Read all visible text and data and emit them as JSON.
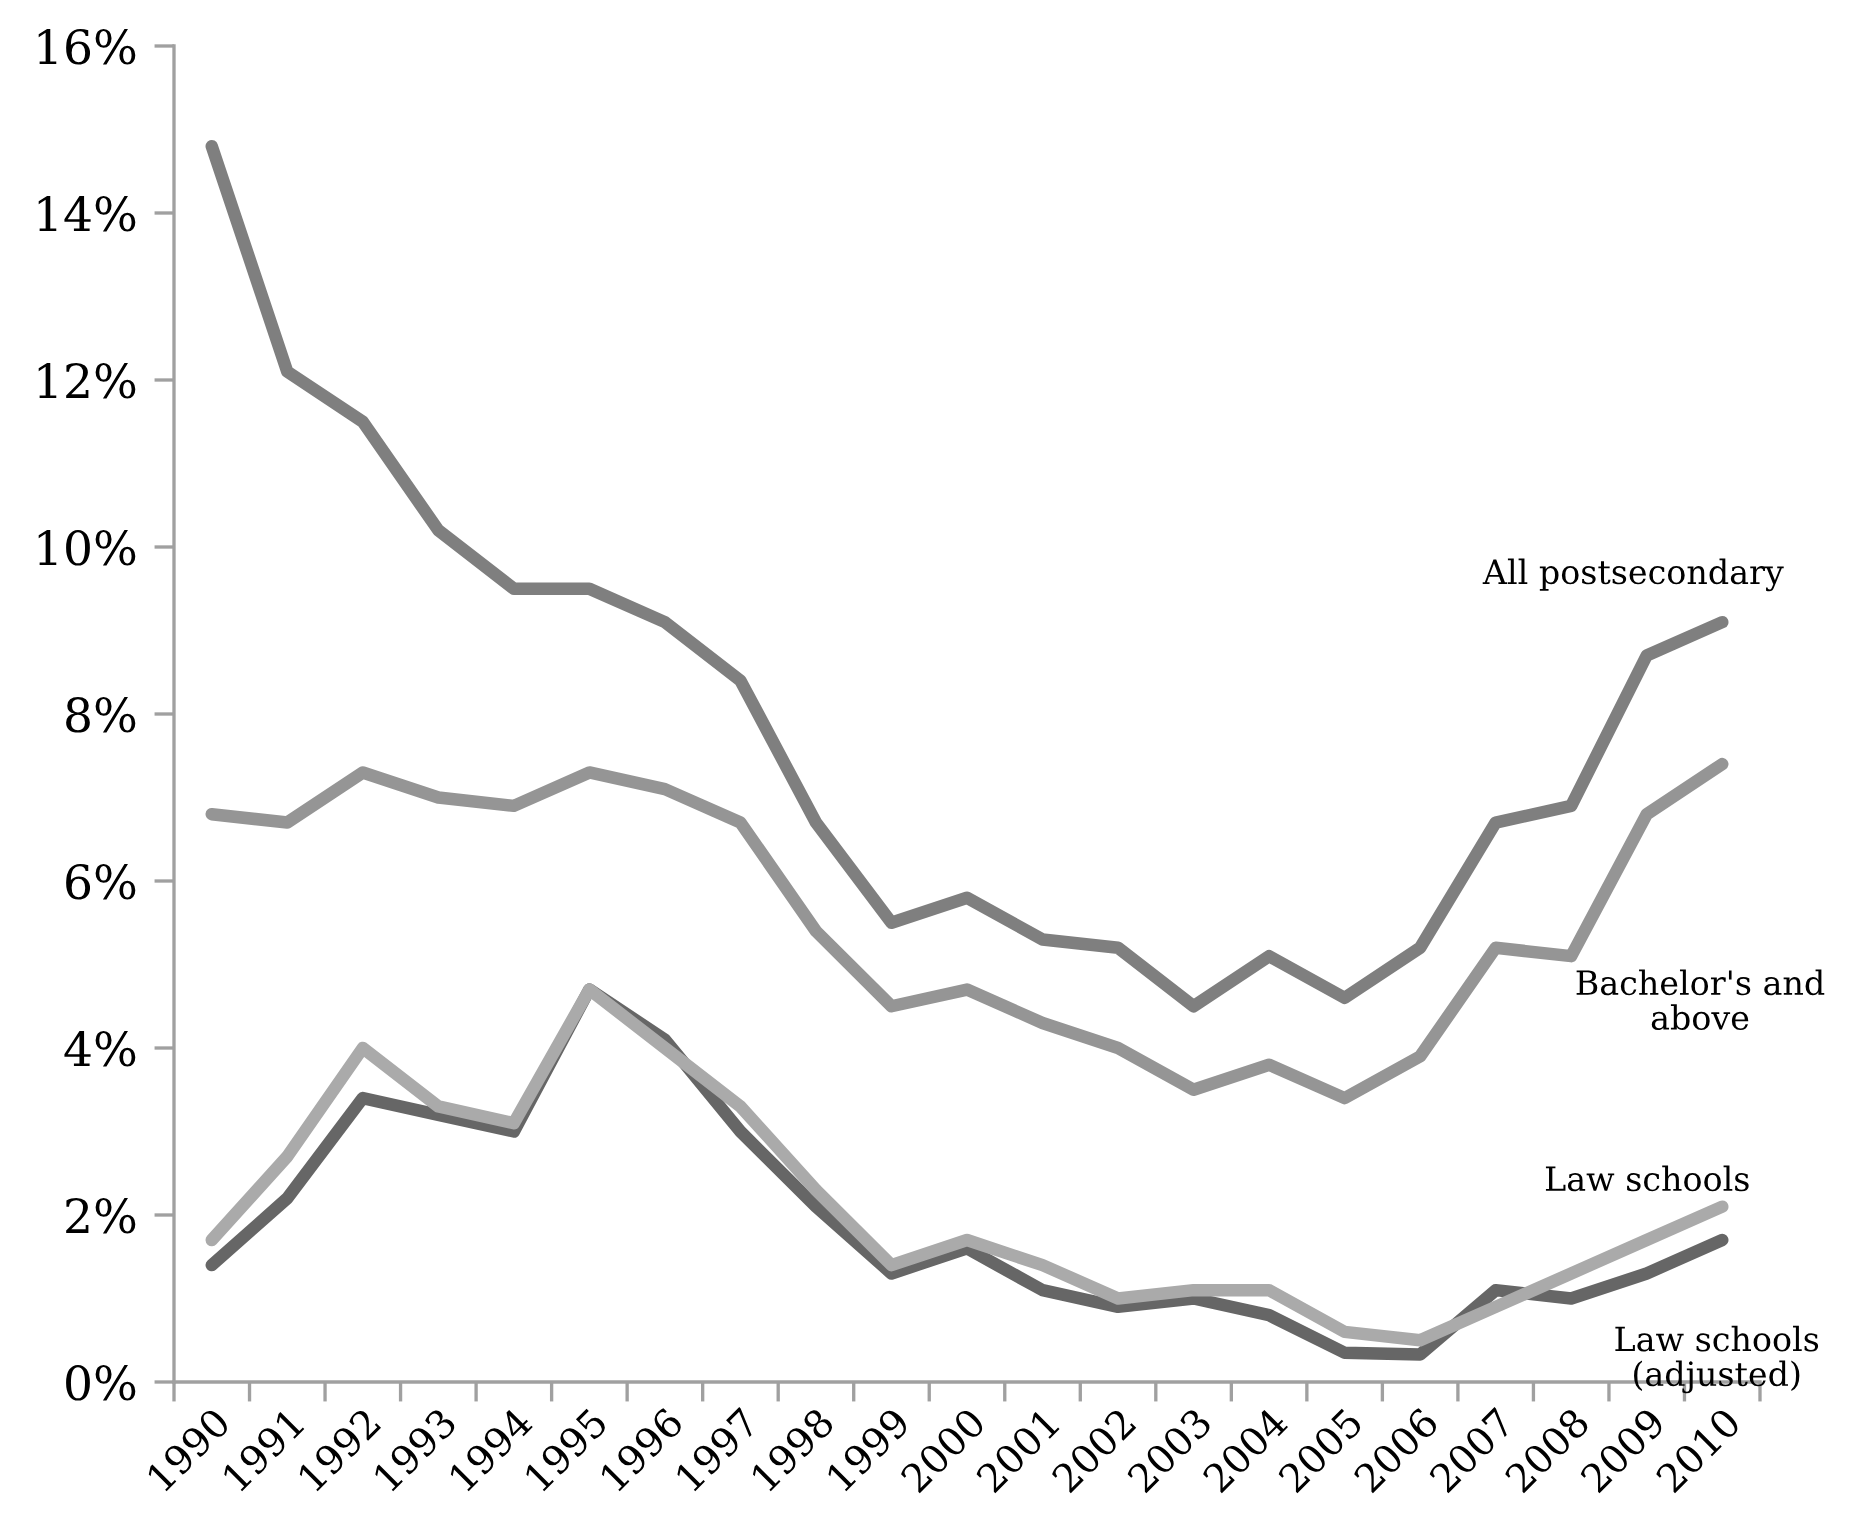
{
  "chart_data": {
    "type": "line",
    "categories": [
      "1990",
      "1991",
      "1992",
      "1993",
      "1994",
      "1995",
      "1996",
      "1997",
      "1998",
      "1999",
      "2000",
      "2001",
      "2002",
      "2003",
      "2004",
      "2005",
      "2006",
      "2007",
      "2008",
      "2009",
      "2010"
    ],
    "ylim": [
      0,
      16
    ],
    "yticks": [
      {
        "value": 0,
        "label": "0%"
      },
      {
        "value": 2,
        "label": "2%"
      },
      {
        "value": 4,
        "label": "4%"
      },
      {
        "value": 6,
        "label": "6%"
      },
      {
        "value": 8,
        "label": "8%"
      },
      {
        "value": 10,
        "label": "10%"
      },
      {
        "value": 12,
        "label": "12%"
      },
      {
        "value": 14,
        "label": "14%"
      },
      {
        "value": 16,
        "label": "16%"
      }
    ],
    "grid": false,
    "legend": false,
    "marker": "none",
    "line_style": "solid",
    "series": [
      {
        "name": "All postsecondary",
        "color": "#7f7f7f",
        "values": [
          14.8,
          12.1,
          11.5,
          10.2,
          9.5,
          9.5,
          9.1,
          8.4,
          6.7,
          5.5,
          5.8,
          5.3,
          5.2,
          4.5,
          5.1,
          4.6,
          5.2,
          6.7,
          6.9,
          8.7,
          9.1
        ]
      },
      {
        "name": "Bachelor's and\nabove",
        "color": "#959595",
        "values": [
          6.8,
          6.7,
          7.3,
          7.0,
          6.9,
          7.3,
          7.1,
          6.7,
          5.4,
          4.5,
          4.7,
          4.3,
          4.0,
          3.5,
          3.8,
          3.4,
          3.9,
          5.2,
          5.1,
          6.8,
          7.4
        ]
      },
      {
        "name": "Law schools",
        "color": "#aaaaaa",
        "values": [
          1.7,
          2.7,
          4.0,
          3.3,
          3.1,
          4.7,
          4.0,
          3.3,
          2.3,
          1.4,
          1.7,
          1.4,
          1.0,
          1.1,
          1.1,
          0.6,
          0.5,
          0.9,
          1.3,
          1.7,
          2.1
        ]
      },
      {
        "name": "Law schools\n(adjusted)",
        "color": "#666666",
        "values": [
          1.4,
          2.2,
          3.4,
          3.2,
          3.0,
          4.7,
          4.1,
          3.0,
          2.1,
          1.3,
          1.6,
          1.1,
          0.9,
          1.0,
          0.8,
          0.35,
          0.33,
          1.1,
          1.0,
          1.3,
          1.7
        ]
      }
    ]
  }
}
